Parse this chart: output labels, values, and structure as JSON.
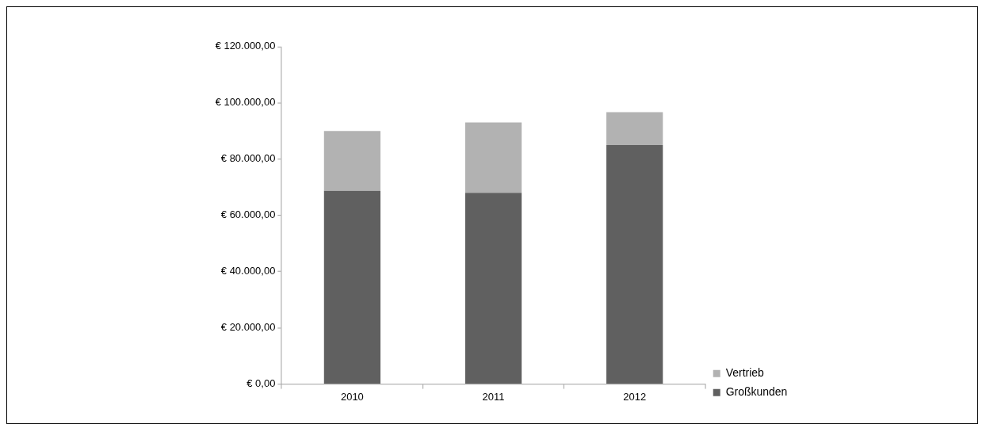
{
  "chart_data": {
    "type": "bar",
    "stacked": true,
    "categories": [
      "2010",
      "2011",
      "2012"
    ],
    "series": [
      {
        "name": "Großkunden",
        "color": "#606060",
        "values": [
          68700,
          68000,
          85000
        ]
      },
      {
        "name": "Vertrieb",
        "color": "#b2b2b2",
        "values": [
          21300,
          25000,
          11700
        ]
      }
    ],
    "ylim": [
      0,
      120000
    ],
    "yticks": [
      {
        "value": 0,
        "label": "€ 0,00"
      },
      {
        "value": 20000,
        "label": "€ 20.000,00"
      },
      {
        "value": 40000,
        "label": "€ 40.000,00"
      },
      {
        "value": 60000,
        "label": "€ 60.000,00"
      },
      {
        "value": 80000,
        "label": "€ 80.000,00"
      },
      {
        "value": 100000,
        "label": "€ 100.000,00"
      },
      {
        "value": 120000,
        "label": "€ 120.000,00"
      }
    ],
    "grid": false,
    "legend": "bottom right"
  }
}
